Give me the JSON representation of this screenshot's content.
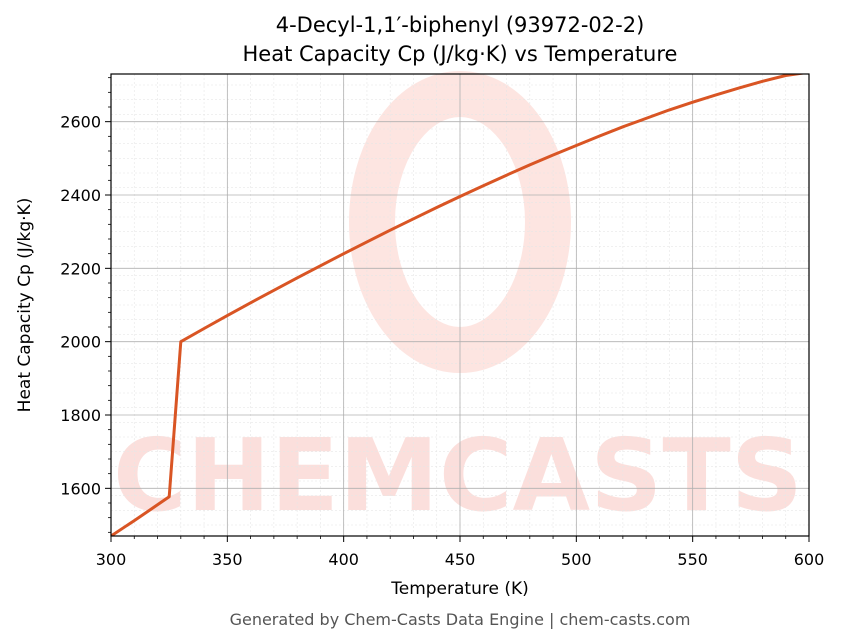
{
  "chart_data": {
    "type": "line",
    "title_line1": "4-Decyl-1,1′-biphenyl (93972-02-2)",
    "title_line2": "Heat Capacity Cp (J/kg·K) vs Temperature",
    "xlabel": "Temperature (K)",
    "ylabel": "Heat Capacity Cp (J/kg·K)",
    "xlim": [
      300,
      600
    ],
    "ylim": [
      1470,
      2730
    ],
    "xticks": [
      300,
      350,
      400,
      450,
      500,
      550,
      600
    ],
    "yticks": [
      1600,
      1800,
      2000,
      2200,
      2400,
      2600
    ],
    "grid": true,
    "line_color": "#d95524",
    "series": [
      {
        "x": [
          300,
          310,
          320,
          325,
          330,
          340,
          350,
          360,
          370,
          380,
          390,
          400,
          410,
          420,
          430,
          440,
          450,
          460,
          470,
          480,
          490,
          500,
          510,
          520,
          530,
          540,
          550,
          560,
          570,
          580,
          590,
          600
        ],
        "y": [
          1470,
          1512,
          1555,
          1577,
          2000,
          2036,
          2071,
          2106,
          2140,
          2174,
          2207,
          2240,
          2272,
          2304,
          2335,
          2366,
          2396,
          2425,
          2454,
          2482,
          2509,
          2535,
          2561,
          2586,
          2609,
          2632,
          2653,
          2673,
          2692,
          2710,
          2726,
          2735
        ]
      }
    ]
  },
  "watermark": "CHEMCASTS",
  "footer": "Generated by Chem-Casts Data Engine | chem-casts.com"
}
